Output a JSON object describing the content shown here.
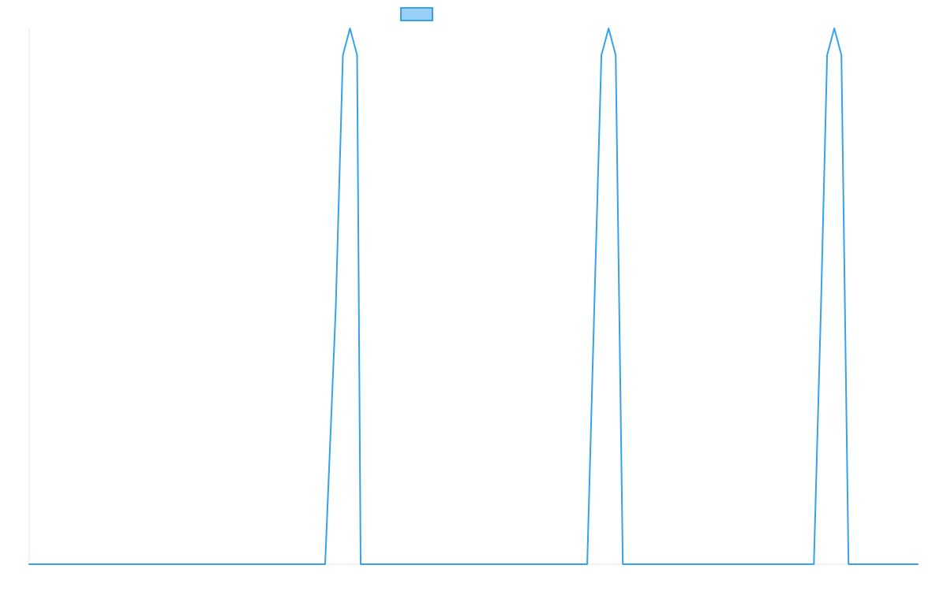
{
  "chart_data": {
    "type": "line",
    "title": "",
    "xlabel": "",
    "ylabel": "",
    "xlim": [
      0,
      100
    ],
    "ylim": [
      0,
      1
    ],
    "grid": false,
    "legend": {
      "placement": "top-center",
      "entries": [
        {
          "label": "",
          "color": "#36A2EB",
          "fill": "#9AD0F5"
        }
      ]
    },
    "series": [
      {
        "color": "#36A2EB",
        "x": [
          0,
          33.3,
          34.5,
          35.3,
          36.1,
          36.9,
          37.3,
          62.8,
          63.6,
          64.4,
          65.2,
          66.0,
          66.8,
          88.3,
          89.1,
          89.8,
          90.6,
          91.4,
          92.2,
          100
        ],
        "y": [
          0,
          0,
          0.48,
          0.95,
          1.0,
          0.95,
          0.0,
          0,
          0.48,
          0.95,
          1.0,
          0.95,
          0.0,
          0,
          0.48,
          0.95,
          1.0,
          0.95,
          0.0,
          0
        ]
      }
    ]
  }
}
